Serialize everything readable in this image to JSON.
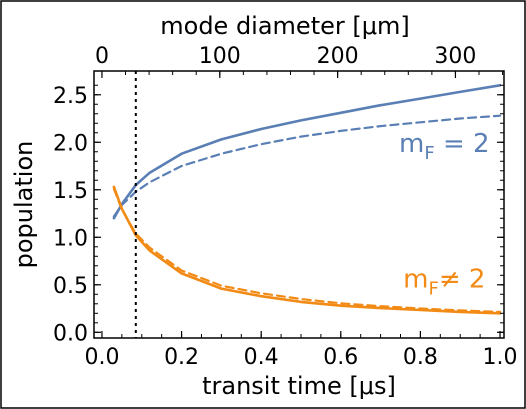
{
  "chart_data": {
    "type": "line",
    "xlabel": "transit time [μs]",
    "ylabel": "population",
    "top_xlabel": "mode diameter [μm]",
    "xlim": [
      -0.02,
      1.01
    ],
    "ylim": [
      -0.06,
      2.75
    ],
    "x_ticks": [
      0.0,
      0.2,
      0.4,
      0.6,
      0.8,
      1.0
    ],
    "x_tick_labels": [
      "0.0",
      "0.2",
      "0.4",
      "0.6",
      "0.8",
      "1.0"
    ],
    "y_ticks": [
      0.0,
      0.5,
      1.0,
      1.5,
      2.0,
      2.5
    ],
    "y_tick_labels": [
      "0.0",
      "0.5",
      "1.0",
      "1.5",
      "2.0",
      "2.5"
    ],
    "top_axis": {
      "ticks_time": [
        0.0,
        0.296,
        0.592,
        0.888
      ],
      "tick_labels": [
        "0",
        "100",
        "200",
        "300"
      ]
    },
    "vertical_reference_line": {
      "x": 0.085,
      "style": "dotted",
      "color": "#000000"
    },
    "grid": false,
    "series": [
      {
        "group": "mF=2",
        "style": "solid",
        "color": "#5a7fb5",
        "x": [
          0.03,
          0.05,
          0.085,
          0.12,
          0.2,
          0.3,
          0.4,
          0.5,
          0.6,
          0.7,
          0.8,
          0.9,
          1.0
        ],
        "y": [
          1.2,
          1.35,
          1.55,
          1.68,
          1.88,
          2.03,
          2.14,
          2.23,
          2.31,
          2.39,
          2.46,
          2.53,
          2.6
        ]
      },
      {
        "group": "mF=2",
        "style": "dashed",
        "color": "#5a7fb5",
        "x": [
          0.03,
          0.05,
          0.085,
          0.12,
          0.2,
          0.3,
          0.4,
          0.5,
          0.6,
          0.7,
          0.8,
          0.9,
          1.0
        ],
        "y": [
          1.22,
          1.34,
          1.48,
          1.58,
          1.75,
          1.88,
          1.98,
          2.06,
          2.12,
          2.17,
          2.21,
          2.25,
          2.28
        ]
      },
      {
        "group": "mF≠2",
        "style": "solid",
        "color": "#f28a16",
        "x": [
          0.03,
          0.05,
          0.085,
          0.12,
          0.2,
          0.3,
          0.4,
          0.5,
          0.6,
          0.7,
          0.8,
          0.9,
          1.0
        ],
        "y": [
          1.53,
          1.3,
          1.02,
          0.86,
          0.62,
          0.46,
          0.38,
          0.32,
          0.28,
          0.255,
          0.235,
          0.215,
          0.2
        ]
      },
      {
        "group": "mF≠2",
        "style": "dashed",
        "color": "#f28a16",
        "x": [
          0.03,
          0.05,
          0.085,
          0.12,
          0.2,
          0.3,
          0.4,
          0.5,
          0.6,
          0.7,
          0.8,
          0.9,
          1.0
        ],
        "y": [
          1.51,
          1.29,
          1.04,
          0.89,
          0.65,
          0.49,
          0.41,
          0.35,
          0.305,
          0.275,
          0.25,
          0.23,
          0.215
        ]
      }
    ],
    "annotations": [
      {
        "main": "m",
        "sub": "F",
        "rest": " = 2",
        "color": "#5a7fb5",
        "near": {
          "x": 0.86,
          "y": 1.9
        }
      },
      {
        "main": "m",
        "sub": "F",
        "rest": "≠ 2",
        "color": "#f28a16",
        "near": {
          "x": 0.86,
          "y": 0.47
        }
      }
    ],
    "frame_color": "#000000"
  }
}
